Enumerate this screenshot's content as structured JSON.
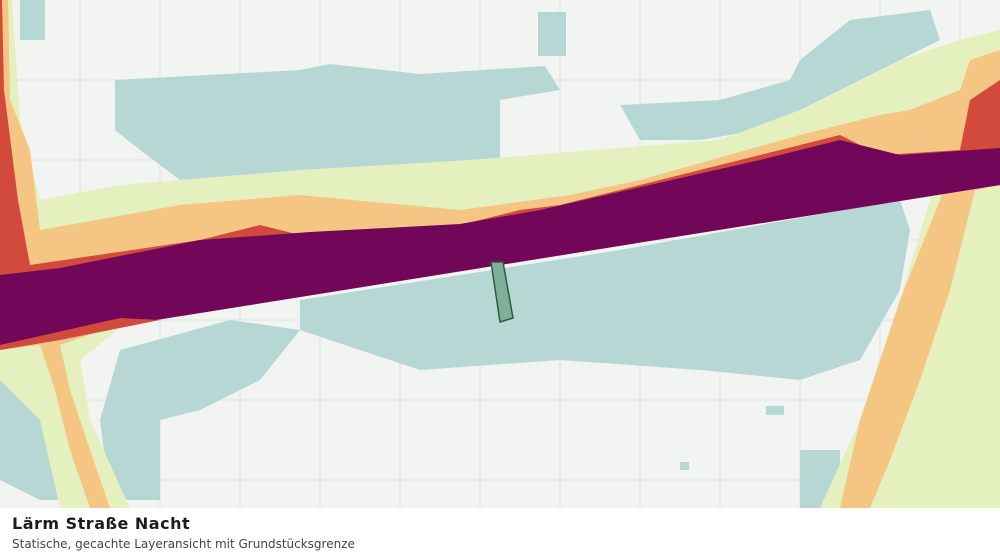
{
  "title": "Lärm Straße Nacht",
  "subtitle": "Statische, gecachte Layeransicht mit Grundstücksgrenze"
}
